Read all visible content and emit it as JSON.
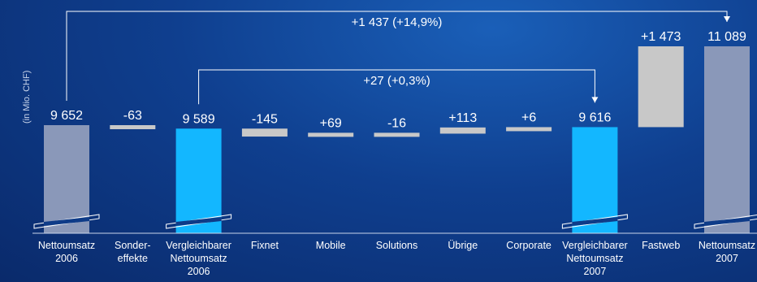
{
  "colors": {
    "total": "#8a98b9",
    "comparable": "#13b7ff",
    "delta": "#c8c8c8",
    "line": "#ffffff",
    "axis": "#c8d4ea"
  },
  "chart_data": {
    "type": "bar",
    "subtype": "waterfall",
    "title": "",
    "xlabel": "",
    "ylabel": "(in Mio. CHF)",
    "axis_break": true,
    "grid": false,
    "categories": [
      [
        "Nettoumsatz",
        "2006"
      ],
      [
        "Sonder-",
        "effekte"
      ],
      [
        "Vergleichbarer",
        "Nettoumsatz",
        "2006"
      ],
      [
        "Fixnet"
      ],
      [
        "Mobile"
      ],
      [
        "Solutions"
      ],
      [
        "Übrige"
      ],
      [
        "Corporate"
      ],
      [
        "Vergleichbarer",
        "Nettoumsatz",
        "2007"
      ],
      [
        "Fastweb"
      ],
      [
        "Nettoumsatz",
        "2007"
      ]
    ],
    "bars": [
      {
        "kind": "total",
        "value": 9652,
        "label": "9 652"
      },
      {
        "kind": "delta",
        "value": -63,
        "label": "-63"
      },
      {
        "kind": "comparable",
        "value": 9589,
        "label": "9 589"
      },
      {
        "kind": "delta",
        "value": -145,
        "label": "-145"
      },
      {
        "kind": "delta",
        "value": 69,
        "label": "+69"
      },
      {
        "kind": "delta",
        "value": -16,
        "label": "-16"
      },
      {
        "kind": "delta",
        "value": 113,
        "label": "+113"
      },
      {
        "kind": "delta",
        "value": 6,
        "label": "+6"
      },
      {
        "kind": "comparable",
        "value": 9616,
        "label": "9 616"
      },
      {
        "kind": "delta",
        "value": 1473,
        "label": "+1 473"
      },
      {
        "kind": "total",
        "value": 11089,
        "label": "11 089"
      }
    ],
    "brackets": [
      {
        "from": 0,
        "to": 10,
        "label": "+1 437 (+14,9%)"
      },
      {
        "from": 2,
        "to": 8,
        "label": "+27 (+0,3%)"
      }
    ]
  }
}
